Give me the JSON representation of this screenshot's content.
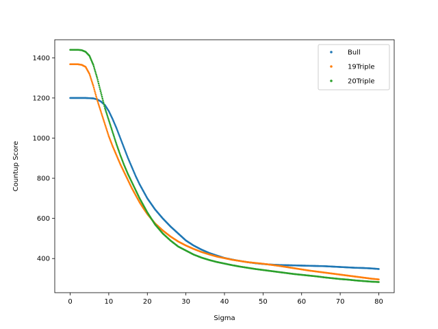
{
  "chart_data": {
    "type": "scatter",
    "xlabel": "Sigma",
    "ylabel": "Countup Score",
    "xlim": [
      -4,
      84
    ],
    "ylim": [
      230,
      1490
    ],
    "xticks": [
      0,
      10,
      20,
      30,
      40,
      50,
      60,
      70,
      80
    ],
    "yticks": [
      400,
      600,
      800,
      1000,
      1200,
      1400
    ],
    "grid": false,
    "legend_position": "upper right",
    "series": [
      {
        "name": "Bull",
        "color": "#1f77b4",
        "points": [
          [
            0,
            1200
          ],
          [
            2,
            1200
          ],
          [
            4,
            1200
          ],
          [
            6,
            1198
          ],
          [
            7,
            1193
          ],
          [
            8,
            1182
          ],
          [
            9,
            1165
          ],
          [
            10,
            1135
          ],
          [
            11,
            1095
          ],
          [
            12,
            1050
          ],
          [
            13,
            1000
          ],
          [
            14,
            950
          ],
          [
            15,
            900
          ],
          [
            16,
            855
          ],
          [
            17,
            810
          ],
          [
            18,
            770
          ],
          [
            19,
            735
          ],
          [
            20,
            700
          ],
          [
            22,
            645
          ],
          [
            24,
            600
          ],
          [
            26,
            560
          ],
          [
            28,
            525
          ],
          [
            30,
            490
          ],
          [
            32,
            465
          ],
          [
            34,
            445
          ],
          [
            36,
            428
          ],
          [
            38,
            415
          ],
          [
            40,
            403
          ],
          [
            42,
            395
          ],
          [
            44,
            388
          ],
          [
            46,
            382
          ],
          [
            48,
            377
          ],
          [
            50,
            373
          ],
          [
            52,
            370
          ],
          [
            54,
            368
          ],
          [
            56,
            367
          ],
          [
            58,
            366
          ],
          [
            60,
            365
          ],
          [
            62,
            364
          ],
          [
            64,
            363
          ],
          [
            66,
            362
          ],
          [
            68,
            360
          ],
          [
            70,
            358
          ],
          [
            72,
            356
          ],
          [
            74,
            354
          ],
          [
            76,
            353
          ],
          [
            78,
            351
          ],
          [
            80,
            348
          ]
        ]
      },
      {
        "name": "19Triple",
        "color": "#ff7f0e",
        "points": [
          [
            0,
            1368
          ],
          [
            1,
            1368
          ],
          [
            2,
            1368
          ],
          [
            3,
            1365
          ],
          [
            4,
            1355
          ],
          [
            5,
            1320
          ],
          [
            6,
            1260
          ],
          [
            7,
            1190
          ],
          [
            8,
            1130
          ],
          [
            9,
            1070
          ],
          [
            10,
            1010
          ],
          [
            11,
            960
          ],
          [
            12,
            915
          ],
          [
            13,
            870
          ],
          [
            14,
            830
          ],
          [
            15,
            790
          ],
          [
            16,
            750
          ],
          [
            17,
            715
          ],
          [
            18,
            680
          ],
          [
            19,
            650
          ],
          [
            20,
            622
          ],
          [
            22,
            575
          ],
          [
            24,
            540
          ],
          [
            26,
            510
          ],
          [
            28,
            485
          ],
          [
            30,
            465
          ],
          [
            32,
            448
          ],
          [
            34,
            433
          ],
          [
            36,
            421
          ],
          [
            38,
            410
          ],
          [
            40,
            402
          ],
          [
            42,
            394
          ],
          [
            44,
            388
          ],
          [
            46,
            382
          ],
          [
            48,
            378
          ],
          [
            50,
            374
          ],
          [
            52,
            369
          ],
          [
            54,
            364
          ],
          [
            56,
            358
          ],
          [
            58,
            352
          ],
          [
            60,
            346
          ],
          [
            62,
            340
          ],
          [
            64,
            335
          ],
          [
            66,
            330
          ],
          [
            68,
            325
          ],
          [
            70,
            320
          ],
          [
            72,
            315
          ],
          [
            74,
            310
          ],
          [
            76,
            305
          ],
          [
            78,
            300
          ],
          [
            80,
            296
          ]
        ]
      },
      {
        "name": "20Triple",
        "color": "#2ca02c",
        "points": [
          [
            0,
            1440
          ],
          [
            1,
            1440
          ],
          [
            2,
            1440
          ],
          [
            3,
            1438
          ],
          [
            4,
            1430
          ],
          [
            5,
            1410
          ],
          [
            6,
            1365
          ],
          [
            7,
            1300
          ],
          [
            8,
            1225
          ],
          [
            9,
            1150
          ],
          [
            10,
            1090
          ],
          [
            11,
            1030
          ],
          [
            12,
            970
          ],
          [
            13,
            915
          ],
          [
            14,
            865
          ],
          [
            15,
            820
          ],
          [
            16,
            780
          ],
          [
            17,
            740
          ],
          [
            18,
            700
          ],
          [
            19,
            665
          ],
          [
            20,
            630
          ],
          [
            22,
            570
          ],
          [
            24,
            525
          ],
          [
            26,
            490
          ],
          [
            28,
            460
          ],
          [
            30,
            440
          ],
          [
            32,
            420
          ],
          [
            34,
            405
          ],
          [
            36,
            393
          ],
          [
            38,
            383
          ],
          [
            40,
            375
          ],
          [
            42,
            367
          ],
          [
            44,
            360
          ],
          [
            46,
            354
          ],
          [
            48,
            348
          ],
          [
            50,
            343
          ],
          [
            52,
            338
          ],
          [
            54,
            333
          ],
          [
            56,
            328
          ],
          [
            58,
            323
          ],
          [
            60,
            319
          ],
          [
            62,
            315
          ],
          [
            64,
            311
          ],
          [
            66,
            306
          ],
          [
            68,
            302
          ],
          [
            70,
            298
          ],
          [
            72,
            295
          ],
          [
            74,
            291
          ],
          [
            76,
            288
          ],
          [
            78,
            285
          ],
          [
            80,
            283
          ]
        ]
      }
    ]
  }
}
